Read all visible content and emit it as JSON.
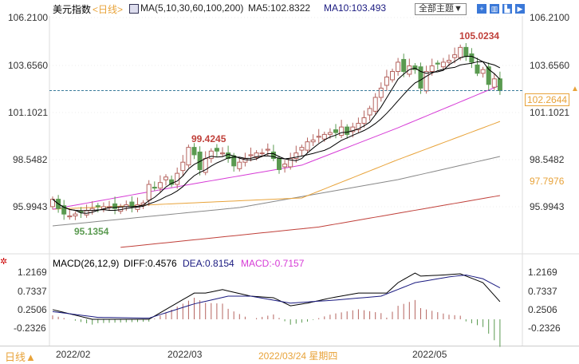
{
  "header": {
    "title": "美元指数",
    "period": "<日线>",
    "ma_label": "MA(5,10,30,60,100,200)",
    "ma5": "MA5:102.8322",
    "ma10": "MA10:103.493",
    "theme_button": "全部主题▼"
  },
  "toolbar_icons": [
    "crosshair-icon",
    "chart-type-icon",
    "candle-icon",
    "forward-icon"
  ],
  "price_axis": [
    "106.2100",
    "103.6560",
    "101.1021",
    "98.5482",
    "95.9943"
  ],
  "current_price": "102.2644",
  "right_extra": "97.7976",
  "annotations": {
    "high": "105.0234",
    "mid_high": "99.4245",
    "low": "95.1354"
  },
  "macd": {
    "label": "MACD(26,12,9)",
    "diff": "DIFF:0.4576",
    "dea": "DEA:0.8154",
    "macd": "MACD:-0.7157",
    "axis": [
      "1.2169",
      "0.7337",
      "0.2506",
      "-0.2326"
    ]
  },
  "x_axis": {
    "period_button": "日线▲",
    "labels": [
      "2022/02",
      "2022/03",
      "2022/05"
    ],
    "cursor_date": "2022/03/24 星期四"
  },
  "colors": {
    "up": "#b5645f",
    "down": "#5a9a50",
    "ma5": "#000000",
    "ma10": "#000000",
    "ma30": "#d63bd6",
    "ma60": "#e8a33a",
    "ma100": "#888888",
    "ma200": "#c0403a"
  },
  "chart_data": {
    "type": "candlestick",
    "closes": [
      96.4,
      95.9,
      95.6,
      95.5,
      95.6,
      95.7,
      95.8,
      95.9,
      96.0,
      96.0,
      96.0,
      95.9,
      96.0,
      96.1,
      96.0,
      96.1,
      96.2,
      97.2,
      97.0,
      97.3,
      97.6,
      97.2,
      97.8,
      98.4,
      99.2,
      98.8,
      98.0,
      98.6,
      99.0,
      99.0,
      98.9,
      98.6,
      98.2,
      98.4,
      98.6,
      98.8,
      98.9,
      98.9,
      99.1,
      98.6,
      98.0,
      98.3,
      98.6,
      98.9,
      99.2,
      99.5,
      99.6,
      99.8,
      99.9,
      100.0,
      100.0,
      100.3,
      99.9,
      100.3,
      100.5,
      100.8,
      101.3,
      101.9,
      102.4,
      103.0,
      103.3,
      103.8,
      103.3,
      103.6,
      103.4,
      102.4,
      103.3,
      103.6,
      103.7,
      103.8,
      103.9,
      104.2,
      104.6,
      104.1,
      103.8,
      103.2,
      103.4,
      102.6,
      102.9,
      102.2644
    ],
    "ma_lines": {
      "ma30": [
        [
          0,
          95.86
        ],
        [
          25,
          97.24
        ],
        [
          44,
          98.24
        ],
        [
          61,
          100.26
        ],
        [
          79,
          102.55
        ]
      ],
      "ma60": [
        [
          0,
          95.86
        ],
        [
          44,
          96.47
        ],
        [
          61,
          98.54
        ],
        [
          79,
          100.6
        ]
      ],
      "ma100": [
        [
          0,
          94.96
        ],
        [
          33,
          95.95
        ],
        [
          61,
          97.46
        ],
        [
          79,
          98.71
        ]
      ],
      "ma200": [
        [
          12,
          93.8
        ],
        [
          47,
          94.9
        ],
        [
          79,
          96.6
        ]
      ]
    },
    "macd_diff": [
      [
        0,
        0.25
      ],
      [
        7,
        0.0
      ],
      [
        17,
        0.0
      ],
      [
        25,
        0.68
      ],
      [
        27,
        0.68
      ],
      [
        30,
        0.77
      ],
      [
        35,
        0.6
      ],
      [
        39,
        0.56
      ],
      [
        42,
        0.35
      ],
      [
        45,
        0.42
      ],
      [
        49,
        0.55
      ],
      [
        54,
        0.68
      ],
      [
        59,
        0.68
      ],
      [
        61,
        0.95
      ],
      [
        64,
        1.2
      ],
      [
        65,
        1.12
      ],
      [
        69,
        1.15
      ],
      [
        72,
        1.18
      ],
      [
        76,
        0.95
      ],
      [
        79,
        0.4576
      ]
    ],
    "macd_dea": [
      [
        0,
        0.2
      ],
      [
        8,
        0.05
      ],
      [
        17,
        0.03
      ],
      [
        25,
        0.4
      ],
      [
        31,
        0.6
      ],
      [
        35,
        0.6
      ],
      [
        42,
        0.42
      ],
      [
        50,
        0.5
      ],
      [
        58,
        0.6
      ],
      [
        64,
        0.95
      ],
      [
        70,
        1.1
      ],
      [
        73,
        1.15
      ],
      [
        76,
        1.05
      ],
      [
        79,
        0.8154
      ]
    ],
    "ylim": [
      94.5,
      106.21
    ],
    "macd_ylim": [
      -0.45,
      1.3
    ]
  }
}
